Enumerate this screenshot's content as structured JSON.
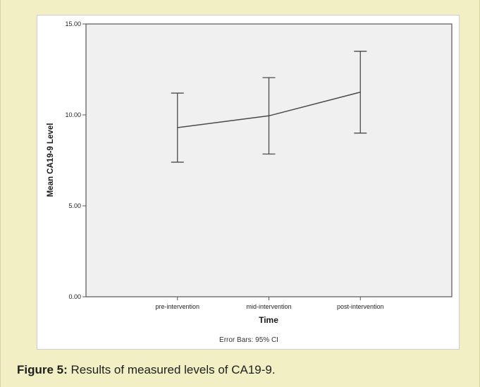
{
  "chart_data": {
    "type": "line",
    "error_bars": true,
    "categories": [
      "pre-intervention",
      "mid-intervention",
      "post-intervention"
    ],
    "values": [
      9.3,
      9.95,
      11.25
    ],
    "ci_lower": [
      7.4,
      7.85,
      9.0
    ],
    "ci_upper": [
      11.2,
      12.05,
      13.5
    ],
    "ylabel": "Mean CA19-9 Level",
    "xlabel": "Time",
    "ylim": [
      0,
      15
    ],
    "yticks": [
      "0.00",
      "5.00",
      "10.00",
      "15.00"
    ],
    "footnote": "Error Bars: 95% CI",
    "grid": false,
    "colors": {
      "plot_background": "#f0f0f0",
      "line": "#4a4a4a"
    }
  },
  "caption": {
    "label": "Figure 5:",
    "text": " Results of measured levels of CA19-9."
  }
}
